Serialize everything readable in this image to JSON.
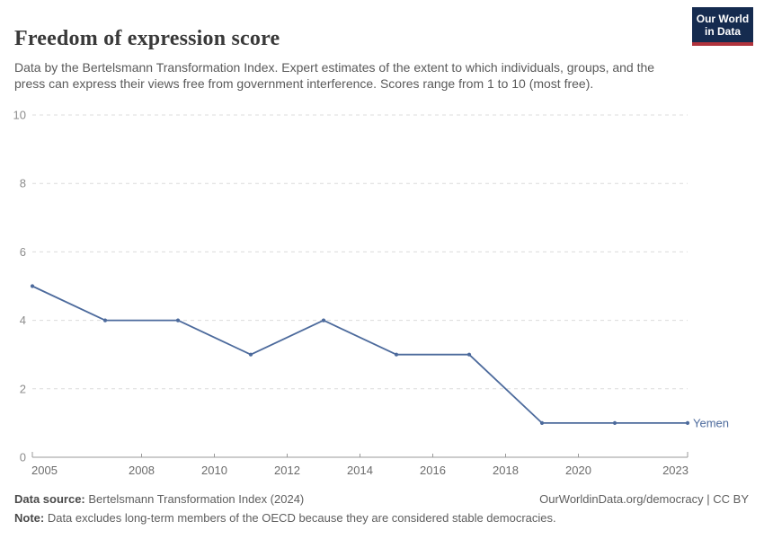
{
  "header": {
    "title": "Freedom of expression score",
    "subtitle": "Data by the Bertelsmann Transformation Index. Expert estimates of the extent to which individuals, groups, and the press can express their views free from government interference. Scores range from 1 to 10 (most free).",
    "logo": {
      "line1": "Our World",
      "line2": "in Data",
      "bg_color": "#152B4F",
      "accent_color": "#B0333C"
    }
  },
  "chart_data": {
    "type": "line",
    "title": "Freedom of expression score",
    "xlabel": "",
    "ylabel": "",
    "x": [
      2005,
      2007,
      2009,
      2011,
      2013,
      2015,
      2017,
      2019,
      2021,
      2023
    ],
    "series": [
      {
        "name": "Yemen",
        "color": "#4C6A9C",
        "values": [
          5,
          4,
          4,
          3,
          4,
          3,
          3,
          1,
          1,
          1
        ]
      }
    ],
    "xlim": [
      2005,
      2023
    ],
    "ylim": [
      0,
      10
    ],
    "x_ticks": [
      2005,
      2008,
      2010,
      2012,
      2014,
      2016,
      2018,
      2020,
      2023
    ],
    "y_ticks": [
      0,
      2,
      4,
      6,
      8,
      10
    ],
    "grid": "horizontal-dashed",
    "legend_position": "end-of-line",
    "colors": {
      "gridline": "#dcdcdc",
      "axis": "#999999",
      "y_tick_label": "#8c8c8c",
      "x_tick_label": "#6b6b6b"
    }
  },
  "footer": {
    "datasource_label": "Data source:",
    "datasource_text": " Bertelsmann Transformation Index (2024)",
    "note_label": "Note:",
    "note_text": " Data excludes long-term members of the OECD because they are considered stable democracies.",
    "attribution": "OurWorldinData.org/democracy | CC BY"
  }
}
